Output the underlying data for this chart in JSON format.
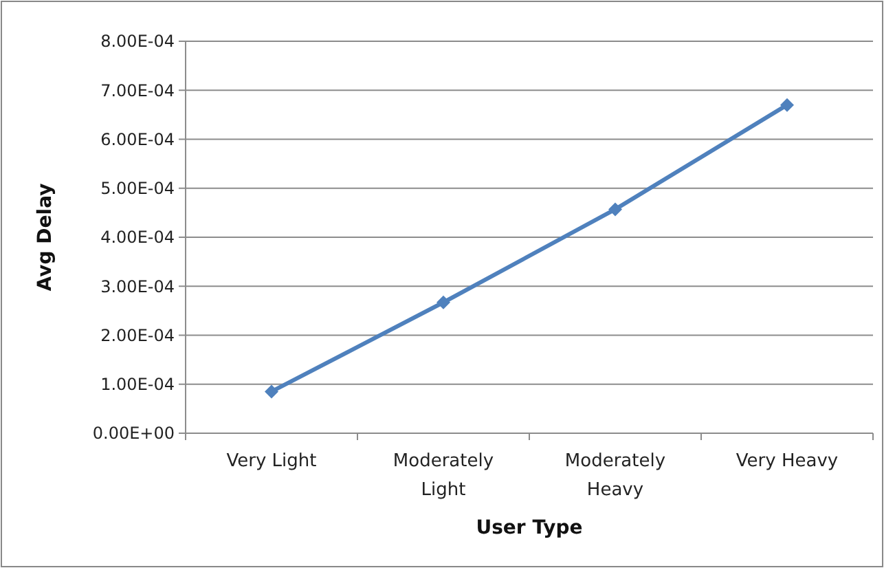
{
  "chart_data": {
    "type": "line",
    "xlabel": "User Type",
    "ylabel": "Avg Delay",
    "categories": [
      "Very Light",
      "Moderately Light",
      "Moderately Heavy",
      "Very Heavy"
    ],
    "series": [
      {
        "color": "#4f81bd",
        "values": [
          8.5e-05,
          0.000267,
          0.000457,
          0.00067
        ]
      }
    ],
    "ylim": [
      0,
      0.0008
    ],
    "yticks": [
      {
        "value": 0,
        "label": "0.00E+00"
      },
      {
        "value": 0.0001,
        "label": "1.00E-04"
      },
      {
        "value": 0.0002,
        "label": "2.00E-04"
      },
      {
        "value": 0.0003,
        "label": "3.00E-04"
      },
      {
        "value": 0.0004,
        "label": "4.00E-04"
      },
      {
        "value": 0.0005,
        "label": "5.00E-04"
      },
      {
        "value": 0.0006,
        "label": "6.00E-04"
      },
      {
        "value": 0.0007,
        "label": "7.00E-04"
      },
      {
        "value": 0.0008,
        "label": "8.00E-04"
      }
    ],
    "grid": "y",
    "marker": "diamond",
    "line_style": "solid"
  }
}
